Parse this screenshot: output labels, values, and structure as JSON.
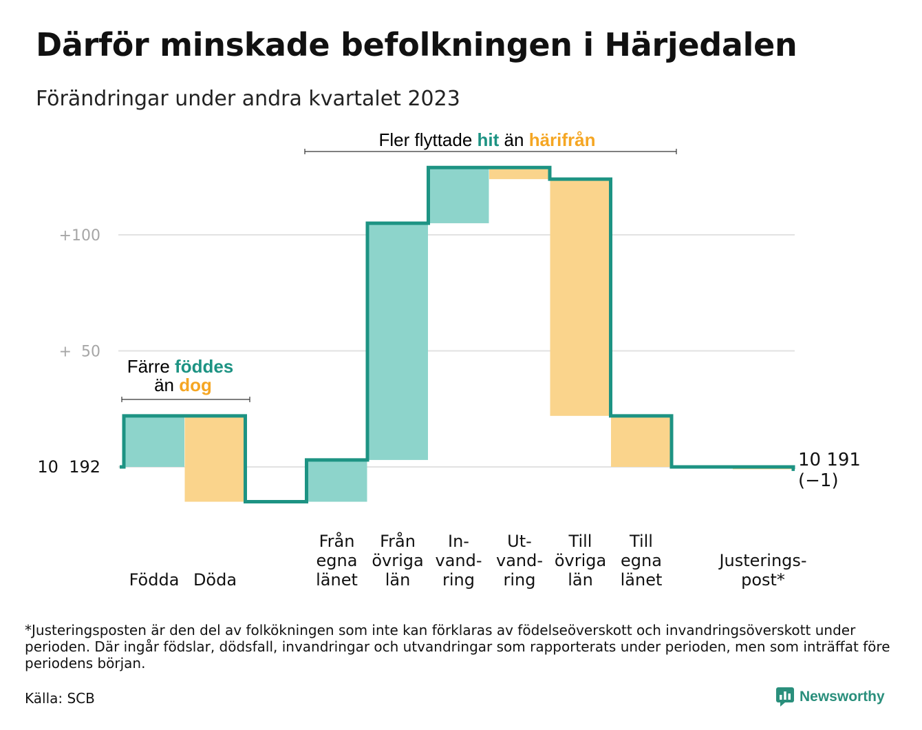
{
  "title": "Därför minskade befolkningen i Härjedalen",
  "subtitle": "Förändringar under andra kvartalet 2023",
  "footnote": "*Justeringsposten är den del av folkökningen som inte kan förklaras av födelseöverskott och invandringsöverskott under perioden. Där ingår födslar, dödsfall, invandringar och utvandringar som rapporterats under perioden, men som inträffat före periodens början.",
  "source": "Källa: SCB",
  "logo": {
    "text": "Newsworthy",
    "icon": "newsworthy-chart-icon"
  },
  "colors": {
    "increase": "#8dd4cb",
    "decrease": "#fad48c",
    "line": "#1d9383",
    "accent_teal": "#1d9383",
    "accent_orange": "#f5a623",
    "grid": "#e2e2e2",
    "tick": "#a6a6a6"
  },
  "chart_data": {
    "type": "waterfall",
    "baseline": 10192,
    "y_ticks": [
      {
        "value": 100,
        "label": "+100"
      },
      {
        "value": 50,
        "label": "+  50"
      },
      {
        "value": 0,
        "label": "10  192"
      }
    ],
    "steps": [
      {
        "label": [
          "",
          "",
          "Födda"
        ],
        "change": 22
      },
      {
        "label": [
          "",
          "",
          "Döda"
        ],
        "change": -37
      },
      {
        "label": [
          "Från",
          "egna",
          "länet"
        ],
        "change": 18
      },
      {
        "label": [
          "Från",
          "övriga",
          "län"
        ],
        "change": 102
      },
      {
        "label": [
          "In-",
          "vand-",
          "ring"
        ],
        "change": 24
      },
      {
        "label": [
          "Ut-",
          "vand-",
          "ring"
        ],
        "change": -5
      },
      {
        "label": [
          "Till",
          "övriga",
          "län"
        ],
        "change": -102
      },
      {
        "label": [
          "Till",
          "egna",
          "länet"
        ],
        "change": -22
      },
      {
        "label": [
          "Justerings-",
          "post*"
        ],
        "change": -1
      }
    ],
    "end_label": [
      "10 191",
      "(−1)"
    ],
    "annotations": [
      {
        "id": "births",
        "line1_plain": "Färre ",
        "line1_teal": "föddes",
        "line2_plain": "än ",
        "line2_orange": "dog"
      },
      {
        "id": "migration",
        "plain1": "Fler flyttade ",
        "teal": "hit",
        "plain2": " än ",
        "orange": "härifrån"
      }
    ]
  }
}
